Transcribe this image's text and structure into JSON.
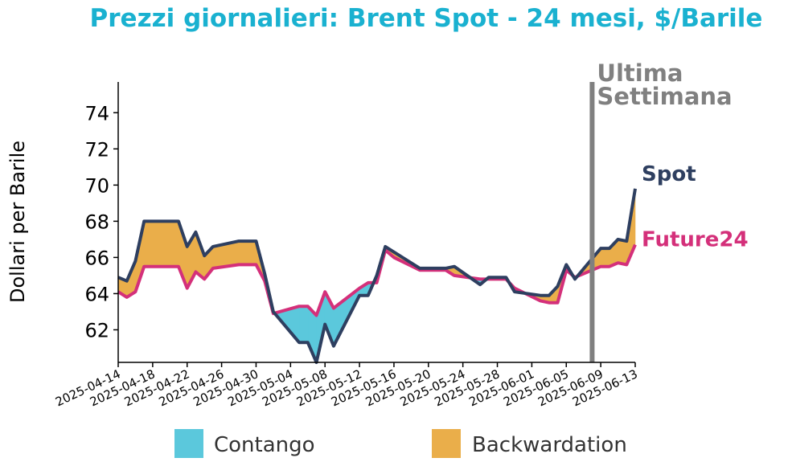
{
  "chart_data": {
    "type": "area",
    "title": "Prezzi giornalieri: Brent Spot - 24 mesi, $/Barile",
    "xlabel": "",
    "ylabel": "Dollari per Barile",
    "ylim": [
      60.2,
      75.7
    ],
    "y_ticks": [
      62,
      64,
      66,
      68,
      70,
      72,
      74
    ],
    "x_tick_labels": [
      "2025-04-14",
      "2025-04-18",
      "2025-04-22",
      "2025-04-26",
      "2025-04-30",
      "2025-05-04",
      "2025-05-08",
      "2025-05-12",
      "2025-05-16",
      "2025-05-20",
      "2025-05-24",
      "2025-05-28",
      "2025-06-01",
      "2025-06-05",
      "2025-06-09",
      "2025-06-13"
    ],
    "x": [
      "2025-04-14",
      "2025-04-15",
      "2025-04-16",
      "2025-04-17",
      "2025-04-18",
      "2025-04-21",
      "2025-04-22",
      "2025-04-23",
      "2025-04-24",
      "2025-04-25",
      "2025-04-28",
      "2025-04-29",
      "2025-04-30",
      "2025-05-01",
      "2025-05-02",
      "2025-05-05",
      "2025-05-06",
      "2025-05-07",
      "2025-05-08",
      "2025-05-09",
      "2025-05-12",
      "2025-05-13",
      "2025-05-14",
      "2025-05-15",
      "2025-05-16",
      "2025-05-19",
      "2025-05-20",
      "2025-05-21",
      "2025-05-22",
      "2025-05-23",
      "2025-05-26",
      "2025-05-27",
      "2025-05-28",
      "2025-05-29",
      "2025-05-30",
      "2025-06-02",
      "2025-06-03",
      "2025-06-04",
      "2025-06-05",
      "2025-06-06",
      "2025-06-09",
      "2025-06-10",
      "2025-06-11",
      "2025-06-12",
      "2025-06-13"
    ],
    "series": [
      {
        "name": "Spot",
        "color": "#2e3f60",
        "values": [
          64.9,
          64.7,
          65.8,
          68.0,
          68.0,
          68.0,
          66.6,
          67.4,
          66.1,
          66.6,
          66.9,
          66.9,
          66.9,
          65.1,
          63.0,
          61.3,
          61.3,
          60.2,
          62.3,
          61.1,
          63.9,
          63.9,
          65.0,
          66.6,
          66.3,
          65.4,
          65.4,
          65.4,
          65.4,
          65.5,
          64.5,
          64.9,
          64.9,
          64.9,
          64.1,
          63.9,
          63.9,
          64.4,
          65.6,
          64.8,
          66.5,
          66.5,
          67.0,
          66.9,
          69.8
        ]
      },
      {
        "name": "Future24",
        "color": "#d4307a",
        "values": [
          64.1,
          63.8,
          64.1,
          65.5,
          65.5,
          65.5,
          64.3,
          65.2,
          64.8,
          65.4,
          65.6,
          65.6,
          65.6,
          64.7,
          62.9,
          63.3,
          63.3,
          62.8,
          64.1,
          63.2,
          64.3,
          64.6,
          64.6,
          66.4,
          66.0,
          65.3,
          65.3,
          65.3,
          65.3,
          65.0,
          64.8,
          64.8,
          64.8,
          64.8,
          64.3,
          63.6,
          63.5,
          63.5,
          65.3,
          64.9,
          65.5,
          65.5,
          65.7,
          65.6,
          66.7
        ]
      }
    ],
    "fill_colors": {
      "contango": "#5bc8dc",
      "backwardation": "#eaae4a"
    },
    "annotation": {
      "date": "2025-06-08",
      "label_line1": "Ultima",
      "label_line2": "Settimana",
      "color": "#808080"
    },
    "legend": [
      {
        "label": "Contango",
        "color": "#5bc8dc"
      },
      {
        "label": "Backwardation",
        "color": "#eaae4a"
      }
    ],
    "legend_placement": "bottom",
    "title_color": "#1ab1d0",
    "grid": false
  }
}
